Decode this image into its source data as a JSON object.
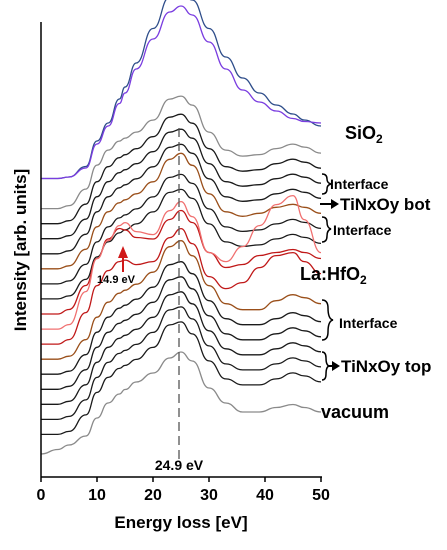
{
  "chart_data": {
    "type": "line",
    "xlabel": "Energy loss [eV]",
    "ylabel": "Intensity [arb. units]",
    "xlim": [
      0,
      50
    ],
    "xticks": [
      "0",
      "10",
      "20",
      "30",
      "40",
      "50"
    ],
    "grid": false,
    "colors": {
      "sio2": "#2e4d8a",
      "sio2_interface": "#7a3de0",
      "gray": "#8a8a8a",
      "black": "#1a1a1a",
      "brown": "#9a4f1a",
      "red_dark": "#c01818",
      "red_light": "#f07070",
      "la_hfo2_label": "#e8201a"
    },
    "layer_labels": {
      "sio2": "SiO",
      "sio2_sub": "2",
      "interface_top": "Interface",
      "tinxoy_bot": "TiNxOy bot",
      "interface_mid": "Interface",
      "la_hfo2": "La:HfO",
      "la_hfo2_sub": "2",
      "interface_low": "Interface",
      "tinxoy_top": "TiNxOy top",
      "vacuum": "vacuum"
    },
    "annotations": {
      "peak_149": "14.9 eV",
      "peak_249": "24.9 eV"
    },
    "x": [
      0,
      3,
      5,
      8,
      10,
      12,
      14,
      15,
      17,
      20,
      23,
      25,
      27,
      30,
      33,
      36,
      39,
      42,
      45,
      47,
      50
    ],
    "series": [
      {
        "color": "sio2",
        "values": [
          0.05,
          0.05,
          0.06,
          0.13,
          0.3,
          0.42,
          0.58,
          0.66,
          0.82,
          1.05,
          1.26,
          1.3,
          1.24,
          1.05,
          0.86,
          0.72,
          0.62,
          0.54,
          0.48,
          0.44,
          0.4
        ]
      },
      {
        "color": "sio2_interface",
        "values": [
          0.05,
          0.05,
          0.06,
          0.12,
          0.28,
          0.4,
          0.55,
          0.62,
          0.78,
          0.98,
          1.16,
          1.2,
          1.14,
          0.96,
          0.78,
          0.64,
          0.56,
          0.5,
          0.45,
          0.43,
          0.42
        ]
      },
      {
        "color": "gray",
        "values": [
          0.05,
          0.05,
          0.07,
          0.18,
          0.34,
          0.44,
          0.5,
          0.52,
          0.56,
          0.64,
          0.78,
          0.8,
          0.74,
          0.56,
          0.44,
          0.4,
          0.41,
          0.45,
          0.48,
          0.46,
          0.42
        ]
      },
      {
        "color": "black",
        "values": [
          0.05,
          0.05,
          0.07,
          0.18,
          0.33,
          0.43,
          0.49,
          0.51,
          0.55,
          0.63,
          0.76,
          0.78,
          0.72,
          0.55,
          0.43,
          0.4,
          0.41,
          0.45,
          0.48,
          0.46,
          0.42
        ]
      },
      {
        "color": "black",
        "values": [
          0.05,
          0.05,
          0.07,
          0.18,
          0.33,
          0.43,
          0.49,
          0.51,
          0.55,
          0.63,
          0.76,
          0.78,
          0.72,
          0.55,
          0.43,
          0.4,
          0.41,
          0.45,
          0.48,
          0.46,
          0.42
        ]
      },
      {
        "color": "black",
        "values": [
          0.05,
          0.05,
          0.07,
          0.18,
          0.33,
          0.43,
          0.49,
          0.51,
          0.55,
          0.63,
          0.76,
          0.78,
          0.72,
          0.55,
          0.43,
          0.4,
          0.41,
          0.45,
          0.48,
          0.46,
          0.42
        ]
      },
      {
        "color": "brown",
        "values": [
          0.05,
          0.05,
          0.07,
          0.18,
          0.33,
          0.43,
          0.49,
          0.51,
          0.55,
          0.63,
          0.78,
          0.82,
          0.74,
          0.55,
          0.43,
          0.4,
          0.42,
          0.46,
          0.48,
          0.46,
          0.42
        ]
      },
      {
        "color": "black",
        "values": [
          0.05,
          0.05,
          0.07,
          0.18,
          0.33,
          0.43,
          0.49,
          0.51,
          0.55,
          0.63,
          0.76,
          0.78,
          0.72,
          0.55,
          0.43,
          0.4,
          0.41,
          0.45,
          0.48,
          0.46,
          0.42
        ]
      },
      {
        "color": "black",
        "values": [
          0.05,
          0.05,
          0.07,
          0.18,
          0.33,
          0.43,
          0.49,
          0.51,
          0.55,
          0.63,
          0.76,
          0.78,
          0.72,
          0.55,
          0.43,
          0.4,
          0.41,
          0.45,
          0.48,
          0.46,
          0.42
        ]
      },
      {
        "color": "red_dark",
        "values": [
          0.05,
          0.05,
          0.08,
          0.24,
          0.42,
          0.55,
          0.62,
          0.61,
          0.56,
          0.55,
          0.68,
          0.74,
          0.66,
          0.46,
          0.36,
          0.38,
          0.44,
          0.46,
          0.48,
          0.46,
          0.42
        ]
      },
      {
        "color": "red_light",
        "values": [
          0.05,
          0.05,
          0.08,
          0.3,
          0.52,
          0.64,
          0.74,
          0.76,
          0.7,
          0.68,
          0.84,
          0.9,
          0.8,
          0.56,
          0.5,
          0.6,
          0.74,
          0.88,
          0.94,
          0.78,
          0.56
        ]
      },
      {
        "color": "red_dark",
        "values": [
          0.05,
          0.05,
          0.08,
          0.26,
          0.44,
          0.54,
          0.6,
          0.61,
          0.58,
          0.6,
          0.76,
          0.82,
          0.72,
          0.5,
          0.42,
          0.46,
          0.56,
          0.64,
          0.66,
          0.6,
          0.52
        ]
      },
      {
        "color": "brown",
        "values": [
          0.05,
          0.05,
          0.07,
          0.18,
          0.33,
          0.43,
          0.49,
          0.51,
          0.55,
          0.63,
          0.8,
          0.84,
          0.74,
          0.54,
          0.42,
          0.38,
          0.38,
          0.44,
          0.48,
          0.46,
          0.42
        ]
      },
      {
        "color": "black",
        "values": [
          0.05,
          0.05,
          0.07,
          0.18,
          0.33,
          0.43,
          0.49,
          0.51,
          0.55,
          0.63,
          0.78,
          0.8,
          0.72,
          0.54,
          0.42,
          0.38,
          0.38,
          0.42,
          0.46,
          0.44,
          0.4
        ]
      },
      {
        "color": "black",
        "values": [
          0.05,
          0.05,
          0.07,
          0.18,
          0.33,
          0.43,
          0.49,
          0.51,
          0.55,
          0.63,
          0.78,
          0.8,
          0.72,
          0.54,
          0.42,
          0.38,
          0.38,
          0.42,
          0.46,
          0.44,
          0.4
        ]
      },
      {
        "color": "black",
        "values": [
          0.05,
          0.05,
          0.07,
          0.18,
          0.33,
          0.43,
          0.49,
          0.51,
          0.55,
          0.63,
          0.78,
          0.8,
          0.72,
          0.54,
          0.42,
          0.38,
          0.38,
          0.42,
          0.46,
          0.44,
          0.4
        ]
      },
      {
        "color": "black",
        "values": [
          0.05,
          0.05,
          0.07,
          0.18,
          0.33,
          0.43,
          0.49,
          0.51,
          0.55,
          0.63,
          0.78,
          0.8,
          0.72,
          0.54,
          0.42,
          0.38,
          0.38,
          0.42,
          0.46,
          0.44,
          0.4
        ]
      },
      {
        "color": "black",
        "values": [
          0.05,
          0.05,
          0.07,
          0.18,
          0.33,
          0.43,
          0.49,
          0.51,
          0.55,
          0.63,
          0.78,
          0.8,
          0.72,
          0.54,
          0.42,
          0.38,
          0.38,
          0.42,
          0.46,
          0.44,
          0.4
        ]
      },
      {
        "color": "gray",
        "values": [
          0.02,
          0.05,
          0.08,
          0.14,
          0.26,
          0.36,
          0.42,
          0.45,
          0.5,
          0.56,
          0.66,
          0.7,
          0.64,
          0.46,
          0.36,
          0.3,
          0.3,
          0.33,
          0.35,
          0.33,
          0.3
        ]
      }
    ]
  }
}
